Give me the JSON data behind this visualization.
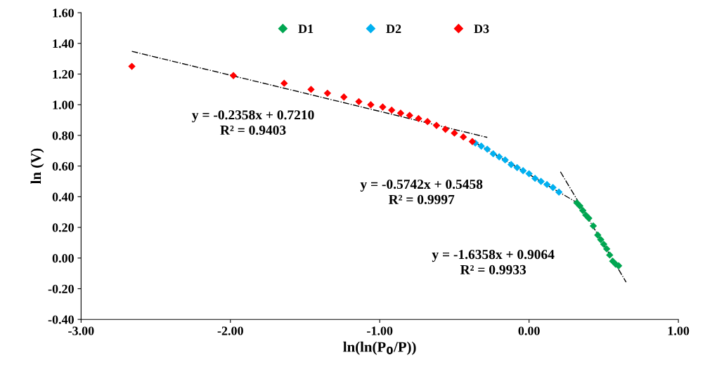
{
  "chart_data": {
    "type": "scatter",
    "xlabel": "ln(ln(P$_{0}$/P))",
    "ylabel": "ln (V)",
    "xlim": [
      -3,
      1
    ],
    "ylim": [
      -0.4,
      1.6
    ],
    "xticks": [
      {
        "value": -3,
        "label": "-3.00"
      },
      {
        "value": -2,
        "label": "-2.00"
      },
      {
        "value": -1,
        "label": "-1.00"
      },
      {
        "value": 0,
        "label": "0.00"
      },
      {
        "value": 1,
        "label": "1.00"
      }
    ],
    "yticks": [
      {
        "value": -0.4,
        "label": "-0.40"
      },
      {
        "value": -0.2,
        "label": "-0.20"
      },
      {
        "value": 0,
        "label": "0.00"
      },
      {
        "value": 0.2,
        "label": "0.20"
      },
      {
        "value": 0.4,
        "label": "0.40"
      },
      {
        "value": 0.6,
        "label": "0.60"
      },
      {
        "value": 0.8,
        "label": "0.80"
      },
      {
        "value": 1.0,
        "label": "1.00"
      },
      {
        "value": 1.2,
        "label": "1.20"
      },
      {
        "value": 1.4,
        "label": "1.40"
      },
      {
        "value": 1.6,
        "label": "1.60"
      }
    ],
    "grid": false,
    "legend": "top",
    "marker": "diamond",
    "series": [
      {
        "name": "D1",
        "color": "#00a651",
        "x": [
          0.32,
          0.34,
          0.36,
          0.38,
          0.4,
          0.43,
          0.46,
          0.48,
          0.5,
          0.52,
          0.54,
          0.56,
          0.58,
          0.6
        ],
        "values": [
          0.36,
          0.34,
          0.31,
          0.28,
          0.26,
          0.21,
          0.15,
          0.12,
          0.09,
          0.06,
          0.02,
          -0.02,
          -0.04,
          -0.05
        ]
      },
      {
        "name": "D2",
        "color": "#00b0f0",
        "x": [
          -0.36,
          -0.32,
          -0.28,
          -0.24,
          -0.2,
          -0.16,
          -0.12,
          -0.08,
          -0.04,
          0.0,
          0.04,
          0.08,
          0.12,
          0.16,
          0.2
        ],
        "values": [
          0.75,
          0.73,
          0.71,
          0.68,
          0.66,
          0.64,
          0.61,
          0.59,
          0.57,
          0.55,
          0.52,
          0.5,
          0.48,
          0.46,
          0.43
        ]
      },
      {
        "name": "D3",
        "color": "#ff0000",
        "x": [
          -2.66,
          -1.98,
          -1.64,
          -1.46,
          -1.35,
          -1.24,
          -1.14,
          -1.06,
          -0.98,
          -0.92,
          -0.86,
          -0.8,
          -0.74,
          -0.68,
          -0.62,
          -0.56,
          -0.5,
          -0.44,
          -0.38
        ],
        "values": [
          1.25,
          1.19,
          1.14,
          1.1,
          1.075,
          1.05,
          1.02,
          1.0,
          0.985,
          0.965,
          0.945,
          0.93,
          0.91,
          0.89,
          0.865,
          0.84,
          0.815,
          0.79,
          0.76
        ]
      },
      {
        "type": "line",
        "color": "#000000",
        "line_style": "dashdot",
        "marker": "none",
        "x": [
          -2.66,
          -0.28
        ],
        "values": [
          1.348,
          0.787
        ]
      },
      {
        "type": "line",
        "color": "#000000",
        "line_style": "dashdot",
        "marker": "none",
        "x": [
          -0.36,
          0.32
        ],
        "values": [
          0.752,
          0.362
        ]
      },
      {
        "type": "line",
        "color": "#000000",
        "line_style": "dashdot",
        "marker": "none",
        "x": [
          0.21,
          0.65
        ],
        "values": [
          0.563,
          -0.157
        ]
      }
    ],
    "annotations": [
      "y = -0.2358x + 0.7210\nR² = 0.9403",
      "y = -0.5742x + 0.5458\nR² = 0.9997",
      "y = -1.6358x + 0.9064\nR² = 0.9933"
    ]
  }
}
